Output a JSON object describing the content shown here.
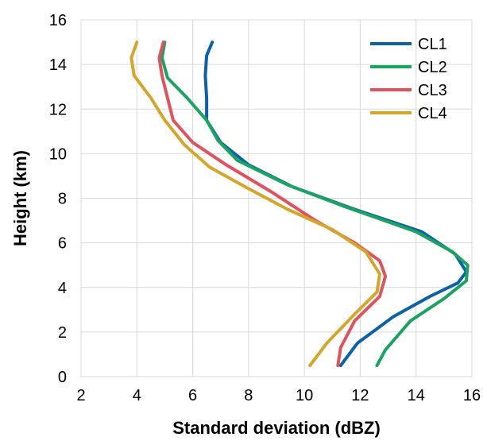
{
  "chart_data": {
    "type": "line",
    "title": "",
    "xlabel": "Standard deviation (dBZ)",
    "ylabel": "Height (km)",
    "xlim": [
      2,
      16
    ],
    "ylim": [
      0,
      16
    ],
    "xticks": [
      2,
      4,
      6,
      8,
      10,
      12,
      14,
      16
    ],
    "yticks": [
      0,
      2,
      4,
      6,
      8,
      10,
      12,
      14,
      16
    ],
    "grid": true,
    "legend_position": "top-right",
    "series": [
      {
        "name": "CL1",
        "color": "#0b62a8",
        "points": [
          [
            11.3,
            0.5
          ],
          [
            11.9,
            1.5
          ],
          [
            13.2,
            2.7
          ],
          [
            14.5,
            3.6
          ],
          [
            15.5,
            4.2
          ],
          [
            15.8,
            4.7
          ],
          [
            15.4,
            5.5
          ],
          [
            14.2,
            6.5
          ],
          [
            11.8,
            7.5
          ],
          [
            9.6,
            8.5
          ],
          [
            8.0,
            9.5
          ],
          [
            7.0,
            10.5
          ],
          [
            6.5,
            11.5
          ],
          [
            6.5,
            12.5
          ],
          [
            6.45,
            13.5
          ],
          [
            6.5,
            14.4
          ],
          [
            6.7,
            15.0
          ]
        ]
      },
      {
        "name": "CL2",
        "color": "#1aa361",
        "points": [
          [
            12.6,
            0.5
          ],
          [
            12.9,
            1.2
          ],
          [
            13.8,
            2.5
          ],
          [
            15.0,
            3.5
          ],
          [
            15.8,
            4.3
          ],
          [
            15.85,
            5.0
          ],
          [
            15.3,
            5.6
          ],
          [
            14.0,
            6.5
          ],
          [
            11.5,
            7.6
          ],
          [
            9.4,
            8.6
          ],
          [
            7.6,
            9.7
          ],
          [
            6.9,
            10.6
          ],
          [
            6.5,
            11.5
          ],
          [
            5.8,
            12.5
          ],
          [
            5.1,
            13.4
          ],
          [
            4.9,
            14.3
          ],
          [
            5.0,
            15.0
          ]
        ]
      },
      {
        "name": "CL3",
        "color": "#e0535e",
        "points": [
          [
            11.2,
            0.5
          ],
          [
            11.3,
            1.3
          ],
          [
            11.8,
            2.5
          ],
          [
            12.7,
            3.6
          ],
          [
            12.9,
            4.5
          ],
          [
            12.7,
            5.2
          ],
          [
            11.8,
            6.0
          ],
          [
            10.4,
            7.0
          ],
          [
            8.8,
            8.3
          ],
          [
            7.2,
            9.5
          ],
          [
            6.0,
            10.5
          ],
          [
            5.3,
            11.5
          ],
          [
            5.1,
            12.5
          ],
          [
            4.9,
            13.5
          ],
          [
            4.8,
            14.3
          ],
          [
            4.95,
            15.0
          ]
        ]
      },
      {
        "name": "CL4",
        "color": "#d4a62a",
        "points": [
          [
            10.2,
            0.5
          ],
          [
            10.8,
            1.5
          ],
          [
            11.8,
            2.8
          ],
          [
            12.6,
            3.8
          ],
          [
            12.7,
            4.6
          ],
          [
            12.2,
            5.6
          ],
          [
            11.0,
            6.6
          ],
          [
            9.4,
            7.5
          ],
          [
            7.9,
            8.5
          ],
          [
            6.6,
            9.4
          ],
          [
            5.7,
            10.4
          ],
          [
            5.0,
            11.5
          ],
          [
            4.5,
            12.5
          ],
          [
            3.9,
            13.5
          ],
          [
            3.8,
            14.3
          ],
          [
            4.0,
            15.0
          ]
        ]
      }
    ]
  }
}
